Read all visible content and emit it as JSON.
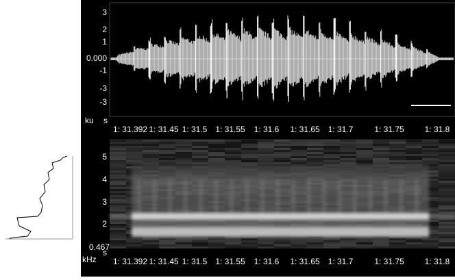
{
  "waveform": {
    "y_unit": "ku",
    "x_unit": "s",
    "y_ticks": [
      "3",
      "2",
      "1",
      "0.000",
      "-1",
      "-3",
      "-3"
    ],
    "time_ticks": [
      "1: 31.392",
      "1: 31.45",
      "1: 31.5",
      "1: 31.55",
      "1: 31.6",
      "1: 31.65",
      "1: 31.7",
      "1: 31.75",
      "1: 31.8"
    ]
  },
  "spectrogram": {
    "y_unit": "kHz",
    "x_unit": "s",
    "y_ticks": [
      "5",
      "4",
      "3",
      "2",
      "0.467"
    ],
    "time_ticks": [
      "1: 31.392",
      "1: 31.45",
      "1: 31.5",
      "1: 31.55",
      "1: 31.6",
      "1: 31.65",
      "1: 31.7",
      "1: 31.75",
      "1: 31.8"
    ]
  }
}
